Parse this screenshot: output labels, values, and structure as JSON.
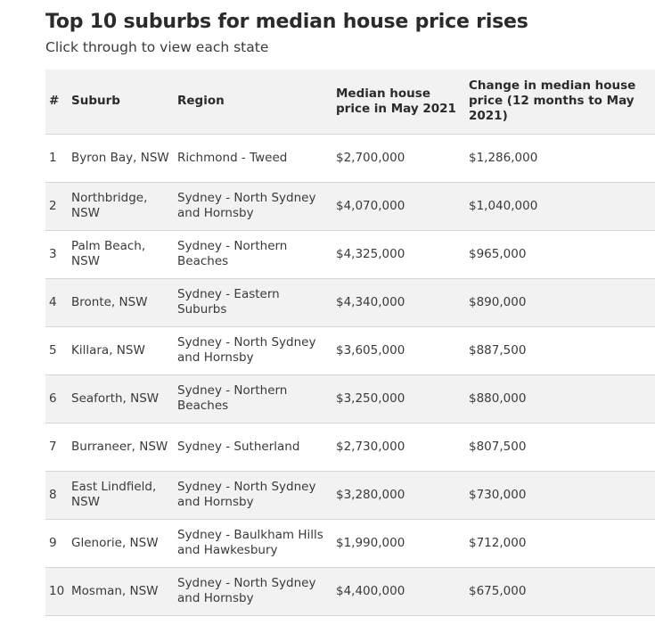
{
  "title": "Top 10 suburbs for median house price rises",
  "subtitle": "Click through to view each state",
  "table": {
    "headers": [
      "#",
      "Suburb",
      "Region",
      "Median house price in May 2021",
      "Change in median house price (12 months to May 2021)"
    ],
    "rows": [
      [
        "1",
        "Byron Bay, NSW",
        "Richmond - Tweed",
        "$2,700,000",
        "$1,286,000"
      ],
      [
        "2",
        "Northbridge, NSW",
        "Sydney - North Sydney and Hornsby",
        "$4,070,000",
        "$1,040,000"
      ],
      [
        "3",
        "Palm Beach, NSW",
        "Sydney - Northern Beaches",
        "$4,325,000",
        "$965,000"
      ],
      [
        "4",
        "Bronte, NSW",
        "Sydney - Eastern Suburbs",
        "$4,340,000",
        "$890,000"
      ],
      [
        "5",
        "Killara, NSW",
        "Sydney - North Sydney and Hornsby",
        "$3,605,000",
        "$887,500"
      ],
      [
        "6",
        "Seaforth, NSW",
        "Sydney - Northern Beaches",
        "$3,250,000",
        "$880,000"
      ],
      [
        "7",
        "Burraneer, NSW",
        "Sydney - Sutherland",
        "$2,730,000",
        "$807,500"
      ],
      [
        "8",
        "East Lindfield, NSW",
        "Sydney - North Sydney and Hornsby",
        "$3,280,000",
        "$730,000"
      ],
      [
        "9",
        "Glenorie, NSW",
        "Sydney - Baulkham Hills and Hawkesbury",
        "$1,990,000",
        "$712,000"
      ],
      [
        "10",
        "Mosman, NSW",
        "Sydney - North Sydney and Hornsby",
        "$4,400,000",
        "$675,000"
      ]
    ]
  }
}
